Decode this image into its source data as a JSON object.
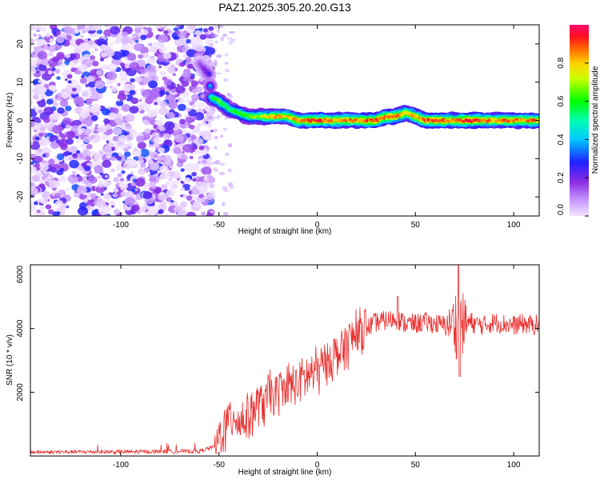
{
  "title": "PAZ1.2025.305.20.20.G13",
  "chart_data": [
    {
      "type": "heatmap",
      "title": "PAZ1.2025.305.20.20.G13",
      "xlabel": "Height of straight line (km)",
      "ylabel": "Frequency (Hz)",
      "xlim": [
        -146,
        113
      ],
      "ylim": [
        -25,
        25
      ],
      "xticks": [
        -100,
        -50,
        0,
        50,
        100
      ],
      "yticks": [
        -20,
        -10,
        0,
        10,
        20
      ],
      "colorbar": {
        "label": "Normalized spectral amplitude",
        "range": [
          0,
          1
        ],
        "ticks": [
          "0.0",
          "0.2",
          "0.4",
          "0.6",
          "0.8"
        ],
        "colormap": [
          "#e6c8ff",
          "#8a2be2",
          "#0000ff",
          "#00ffff",
          "#00ff00",
          "#ffff00",
          "#ff8000",
          "#ff0000",
          "#ff0080"
        ]
      },
      "noise_region": {
        "x_from": -146,
        "x_to": -55,
        "frequency_range": [
          -25,
          25
        ],
        "amplitude": "low"
      },
      "ridge": {
        "x": [
          -60,
          -55,
          -54,
          -50,
          -45,
          -40,
          -35,
          -30,
          -25,
          -20,
          -15,
          -10,
          -5,
          0,
          5,
          10,
          15,
          20,
          25,
          30,
          35,
          40,
          45,
          50,
          55,
          60,
          65,
          70,
          75,
          80,
          85,
          90,
          95,
          100,
          105,
          110,
          113
        ],
        "frequency": [
          15,
          12,
          6,
          5,
          3,
          2,
          1,
          1,
          1,
          1,
          1,
          0,
          0,
          0,
          0,
          0,
          0,
          0,
          0,
          0,
          1,
          1,
          2,
          1,
          0,
          0,
          0,
          0,
          0,
          0,
          0,
          0,
          0,
          0,
          0,
          0,
          0
        ],
        "amplitude": [
          0.15,
          0.25,
          0.55,
          0.65,
          0.55,
          0.6,
          0.65,
          0.7,
          0.8,
          0.85,
          0.8,
          0.85,
          0.9,
          0.95,
          0.9,
          0.85,
          0.9,
          0.85,
          0.9,
          0.95,
          0.9,
          0.9,
          0.8,
          0.85,
          0.9,
          0.95,
          0.9,
          0.85,
          0.95,
          0.95,
          0.9,
          0.85,
          0.9,
          0.9,
          0.85,
          0.9,
          0.8
        ]
      }
    },
    {
      "type": "line",
      "xlabel": "Height of straight line (km)",
      "ylabel": "SNR (10 * v/v)",
      "xlim": [
        -146,
        113
      ],
      "ylim": [
        0,
        6000
      ],
      "xticks": [
        -100,
        -50,
        0,
        50,
        100
      ],
      "yticks": [
        2000,
        4000,
        6000
      ],
      "series": [
        {
          "name": "SNR",
          "color": "#e8302f",
          "x": [
            -146,
            -120,
            -100,
            -80,
            -60,
            -52,
            -50,
            -45,
            -42,
            -40,
            -35,
            -30,
            -25,
            -20,
            -15,
            -10,
            -5,
            0,
            5,
            10,
            15,
            20,
            25,
            30,
            35,
            40,
            45,
            50,
            55,
            60,
            65,
            70,
            72,
            75,
            80,
            85,
            90,
            95,
            100,
            105,
            110,
            113
          ],
          "y": [
            120,
            130,
            130,
            140,
            150,
            300,
            600,
            1100,
            1400,
            1000,
            1300,
            1600,
            1800,
            2000,
            2150,
            2300,
            2500,
            2700,
            2950,
            3200,
            3500,
            3800,
            4000,
            4200,
            4250,
            4300,
            4150,
            4150,
            4200,
            4150,
            4100,
            4200,
            4100,
            4200,
            4150,
            4100,
            4200,
            4150,
            4100,
            4150,
            4100,
            4150
          ]
        }
      ]
    }
  ]
}
